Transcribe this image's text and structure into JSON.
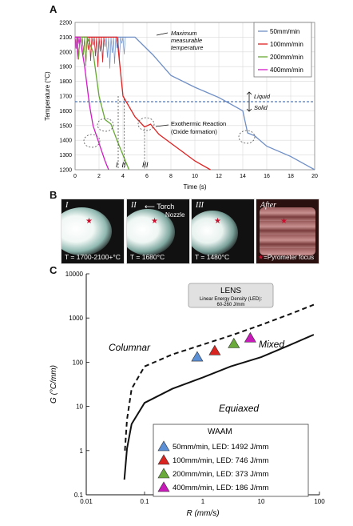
{
  "panel_labels": {
    "a": "A",
    "b": "B",
    "c": "C"
  },
  "panelA": {
    "ylabel": "Temperature (°C)",
    "xlabel": "Time (s)",
    "max_label_1": "Maximum",
    "max_label_2": "measurable",
    "max_label_3": "temperature",
    "liquid_label": "Liquid",
    "solid_label": "Solid",
    "exo_label_1": "Exothermic Reaction",
    "exo_label_2": "(Oxide formation)",
    "roman_markers": [
      "I",
      "II",
      "III"
    ],
    "legend": [
      "50mm/min",
      "100mm/min",
      "200mm/min",
      "400mm/min"
    ],
    "colors": {
      "s50": "#6f8fc6",
      "s100": "#e02020",
      "s200": "#66a832",
      "s400": "#d21ac6"
    }
  },
  "panelB": {
    "photos": [
      {
        "roman": "I",
        "caption": "T = 1700-2100+°C"
      },
      {
        "roman": "II",
        "caption": "T = 1680°C",
        "torch": "Torch",
        "nozzle": "Nozzle"
      },
      {
        "roman": "III",
        "caption": "T = 1480°C"
      },
      {
        "roman": "After",
        "caption": "=Pyrometer focus"
      }
    ]
  },
  "panelC": {
    "ylabel": "G (°C/mm)",
    "xlabel": "R (mm/s)",
    "lens_title": "LENS",
    "lens_sub_1": "Linear Energy Density (LED):",
    "lens_sub_2": "60-260 J/mm",
    "columnar": "Columnar",
    "mixed": "Mixed",
    "equiaxed": "Equiaxed",
    "waam_title": "WAAM",
    "waam_items": [
      {
        "label": "50mm/min,  LED: 1492 J/mm",
        "color": "#5b8fd6"
      },
      {
        "label": "100mm/min, LED: 746 J/mm",
        "color": "#d9241f"
      },
      {
        "label": "200mm/min, LED: 373 J/mm",
        "color": "#6aaa3a"
      },
      {
        "label": "400mm/min, LED: 186 J/mm",
        "color": "#c81ab8"
      }
    ]
  },
  "chart_data": [
    {
      "type": "line",
      "xlabel": "Time (s)",
      "ylabel": "Temperature (°C)",
      "xlim": [
        0,
        20
      ],
      "ylim": [
        1200,
        2200
      ],
      "x_ticks": [
        0,
        2,
        4,
        6,
        8,
        10,
        12,
        14,
        16,
        18,
        20
      ],
      "y_ticks": [
        1200,
        1300,
        1400,
        1500,
        1600,
        1700,
        1800,
        1900,
        2000,
        2100,
        2200
      ],
      "grid": true,
      "legend_position": "top-right",
      "liquid_solid_line": 1660,
      "series": [
        {
          "name": "50mm/min",
          "x": [
            0,
            4.2,
            5.0,
            6.5,
            8,
            10,
            12,
            14,
            14.4,
            15,
            16,
            18,
            20
          ],
          "y": [
            2100,
            2100,
            2100,
            1980,
            1840,
            1760,
            1690,
            1600,
            1450,
            1430,
            1360,
            1290,
            1200
          ]
        },
        {
          "name": "100mm/min",
          "x": [
            0,
            2.5,
            3.5,
            4.0,
            5.0,
            5.8,
            6.3,
            7,
            8,
            9,
            10,
            11.3
          ],
          "y": [
            2100,
            2100,
            2100,
            1700,
            1560,
            1490,
            1510,
            1440,
            1380,
            1320,
            1260,
            1200
          ]
        },
        {
          "name": "200mm/min",
          "x": [
            0,
            1.0,
            1.5,
            2.0,
            2.5,
            3.0,
            3.5,
            4.0,
            4.5
          ],
          "y": [
            2100,
            2100,
            2000,
            1700,
            1540,
            1510,
            1400,
            1300,
            1200
          ]
        },
        {
          "name": "400mm/min",
          "x": [
            0,
            0.4,
            0.8,
            1.2,
            1.5,
            2.0,
            2.5,
            2.8
          ],
          "y": [
            2100,
            2100,
            1900,
            1640,
            1500,
            1380,
            1260,
            1200
          ]
        }
      ]
    },
    {
      "type": "line",
      "xlabel": "R (mm/s)",
      "ylabel": "G (°C/mm)",
      "xscale": "log",
      "yscale": "log",
      "xlim": [
        0.01,
        100
      ],
      "ylim": [
        0.1,
        10000
      ],
      "x_ticks": [
        0.01,
        0.1,
        1,
        10,
        100
      ],
      "y_ticks": [
        0.1,
        1,
        10,
        100,
        1000,
        10000
      ],
      "series": [
        {
          "style": "dashed",
          "x": [
            0.046,
            0.05,
            0.06,
            0.1,
            0.3,
            1,
            3,
            10,
            30,
            80
          ],
          "y": [
            1,
            5,
            25,
            80,
            150,
            250,
            400,
            700,
            1200,
            2000
          ]
        },
        {
          "style": "solid",
          "x": [
            0.045,
            0.05,
            0.06,
            0.1,
            0.3,
            1,
            3,
            10,
            30,
            80
          ],
          "y": [
            0.22,
            1.1,
            4,
            12,
            25,
            45,
            80,
            130,
            240,
            420
          ]
        }
      ],
      "points": [
        {
          "name": "50mm/min",
          "x": 0.8,
          "y": 130
        },
        {
          "name": "100mm/min",
          "x": 1.6,
          "y": 180
        },
        {
          "name": "200mm/min",
          "x": 3.4,
          "y": 260
        },
        {
          "name": "400mm/min",
          "x": 6.5,
          "y": 350
        }
      ]
    }
  ]
}
